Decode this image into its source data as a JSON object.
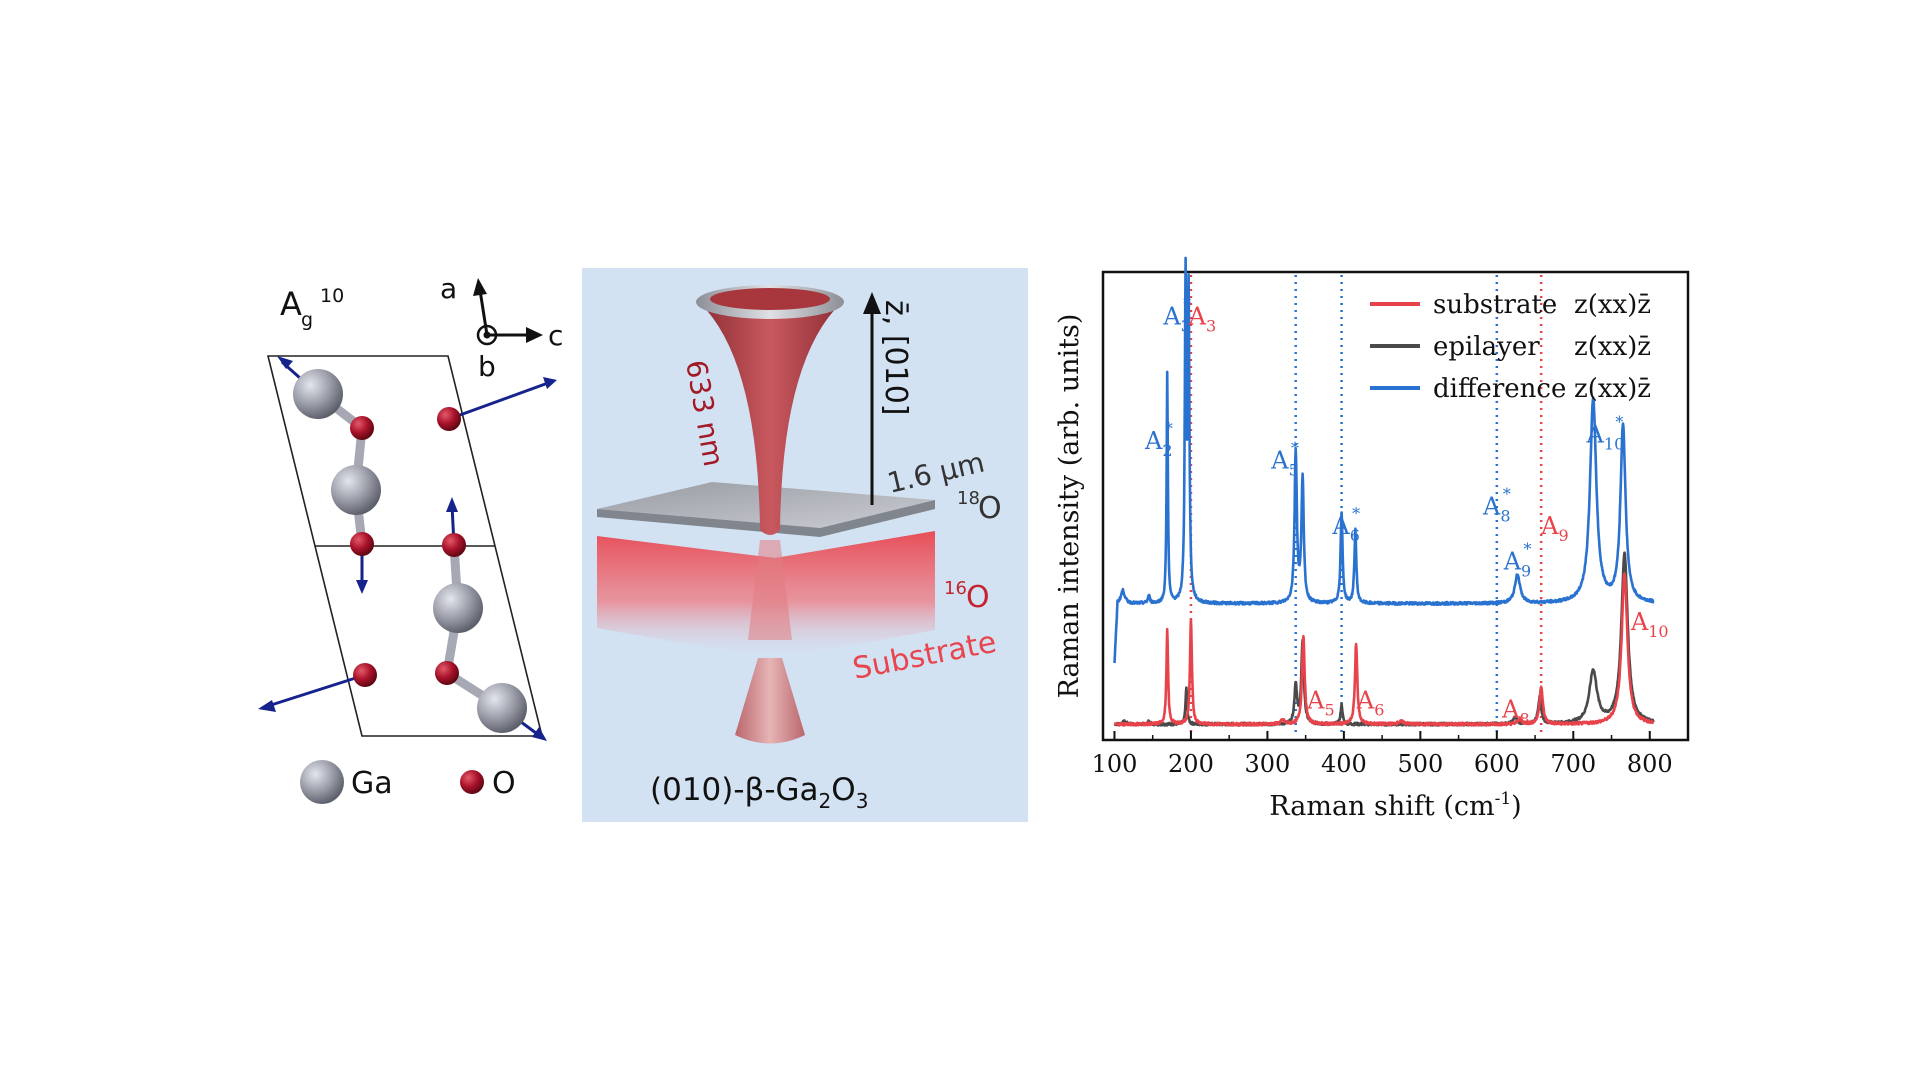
{
  "panel_a": {
    "mode_label": "A",
    "mode_sub": "g",
    "mode_sup": "10",
    "axis_a": "a",
    "axis_b": "b",
    "axis_c": "c",
    "legend_ga": "Ga",
    "legend_o": "O",
    "colors": {
      "ga": "#9c9faa",
      "o": "#a8122a",
      "arrow": "#17238c"
    }
  },
  "panel_b": {
    "wavelength": "633 nm",
    "direction_z": "z̄, [010]",
    "thickness": "1.6 μm",
    "isotope_18": "18",
    "isotope_16": "16",
    "element_o": "O",
    "substrate": "Substrate",
    "caption_main": "(010)-β-Ga",
    "caption_sub1": "2",
    "caption_mid": "O",
    "caption_sub2": "3",
    "colors": {
      "background": "#d3e2f3",
      "beam": "#b84a50",
      "substrate": "#e8464f"
    }
  },
  "chart_data": {
    "type": "line",
    "xlabel": "Raman shift (cm",
    "xlabel_sup": "-1",
    "xlabel_end": ")",
    "ylabel": "Raman intensity (arb. units)",
    "xlim": [
      85,
      850
    ],
    "xticks": [
      100,
      200,
      300,
      400,
      500,
      600,
      700,
      800
    ],
    "yticks_shown": false,
    "legend_position": "top-right",
    "legend_geometry": "z(xx)z̄",
    "series": [
      {
        "name": "substrate",
        "color": "#e8434b",
        "baseline": 0.0,
        "peaks": [
          {
            "x": 169,
            "h": 0.72,
            "w": 1.3
          },
          {
            "x": 200,
            "h": 0.8,
            "w": 1.5
          },
          {
            "x": 320,
            "h": 0.03,
            "w": 3
          },
          {
            "x": 347,
            "h": 0.68,
            "w": 2.0
          },
          {
            "x": 416,
            "h": 0.62,
            "w": 1.8
          },
          {
            "x": 475,
            "h": 0.02,
            "w": 5
          },
          {
            "x": 630,
            "h": 0.04,
            "w": 3
          },
          {
            "x": 658,
            "h": 0.29,
            "w": 2.5
          },
          {
            "x": 767,
            "h": 1.15,
            "w": 4.5
          }
        ]
      },
      {
        "name": "epilayer",
        "color": "#4a4a4a",
        "baseline": 0.0,
        "peaks": [
          {
            "x": 113,
            "h": 0.02,
            "w": 3
          },
          {
            "x": 145,
            "h": 0.02,
            "w": 2
          },
          {
            "x": 194,
            "h": 0.28,
            "w": 1.3
          },
          {
            "x": 337,
            "h": 0.3,
            "w": 2
          },
          {
            "x": 346,
            "h": 0.62,
            "w": 2
          },
          {
            "x": 397,
            "h": 0.15,
            "w": 1.5
          },
          {
            "x": 624,
            "h": 0.05,
            "w": 3
          },
          {
            "x": 656,
            "h": 0.2,
            "w": 2.5
          },
          {
            "x": 726,
            "h": 0.4,
            "w": 6
          },
          {
            "x": 767,
            "h": 1.3,
            "w": 5
          }
        ]
      },
      {
        "name": "difference",
        "color": "#2a72cf",
        "baseline": 0.92,
        "peaks": [
          {
            "x": 111,
            "h": 0.1,
            "w": 3
          },
          {
            "x": 145,
            "h": 0.06,
            "w": 1.5
          },
          {
            "x": 169,
            "h": 1.75,
            "w": 1.0
          },
          {
            "x": 193,
            "h": 2.45,
            "w": 1.2
          },
          {
            "x": 197,
            "h": 2.3,
            "w": 1.2
          },
          {
            "x": 337,
            "h": 1.15,
            "w": 1.8
          },
          {
            "x": 346,
            "h": 0.95,
            "w": 1.8
          },
          {
            "x": 397,
            "h": 0.68,
            "w": 1.6
          },
          {
            "x": 415,
            "h": 0.56,
            "w": 1.5
          },
          {
            "x": 627,
            "h": 0.22,
            "w": 4
          },
          {
            "x": 726,
            "h": 1.55,
            "w": 5
          },
          {
            "x": 765,
            "h": 1.35,
            "w": 4
          }
        ]
      }
    ],
    "vlines": [
      {
        "x": 200,
        "color": "#e8434b"
      },
      {
        "x": 337,
        "color": "#2a72cf"
      },
      {
        "x": 397,
        "color": "#2a72cf"
      },
      {
        "x": 600,
        "color": "#2a72cf"
      },
      {
        "x": 658,
        "color": "#e8434b"
      }
    ],
    "annotations": [
      {
        "base": "A",
        "sub": "2",
        "star": true,
        "x": 158,
        "level": 2.1,
        "color": "#2a72cf"
      },
      {
        "base": "A",
        "sub": "3",
        "star": true,
        "x": 182,
        "level": 3.05,
        "color": "#2a72cf"
      },
      {
        "base": "A",
        "sub": "3",
        "star": false,
        "x": 215,
        "level": 3.05,
        "color": "#e8434b"
      },
      {
        "base": "A",
        "sub": "5",
        "star": true,
        "x": 323,
        "level": 1.95,
        "color": "#2a72cf"
      },
      {
        "base": "A",
        "sub": "6",
        "star": true,
        "x": 403,
        "level": 1.45,
        "color": "#2a72cf"
      },
      {
        "base": "A",
        "sub": "8",
        "star": true,
        "x": 600,
        "level": 1.6,
        "color": "#2a72cf"
      },
      {
        "base": "A",
        "sub": "9",
        "star": false,
        "x": 676,
        "level": 1.45,
        "color": "#e8434b"
      },
      {
        "base": "A",
        "sub": "9",
        "star": true,
        "x": 627,
        "level": 1.18,
        "color": "#2a72cf"
      },
      {
        "base": "A",
        "sub": "10",
        "star": true,
        "x": 742,
        "level": 2.15,
        "color": "#2a72cf"
      },
      {
        "base": "A",
        "sub": "5",
        "star": false,
        "x": 370,
        "level": 0.12,
        "color": "#e8434b"
      },
      {
        "base": "A",
        "sub": "6",
        "star": false,
        "x": 435,
        "level": 0.12,
        "color": "#e8434b"
      },
      {
        "base": "A",
        "sub": "8",
        "star": false,
        "x": 625,
        "level": 0.05,
        "color": "#e8434b"
      },
      {
        "base": "A",
        "sub": "10",
        "star": false,
        "x": 800,
        "level": 0.72,
        "color": "#e8434b"
      }
    ]
  }
}
